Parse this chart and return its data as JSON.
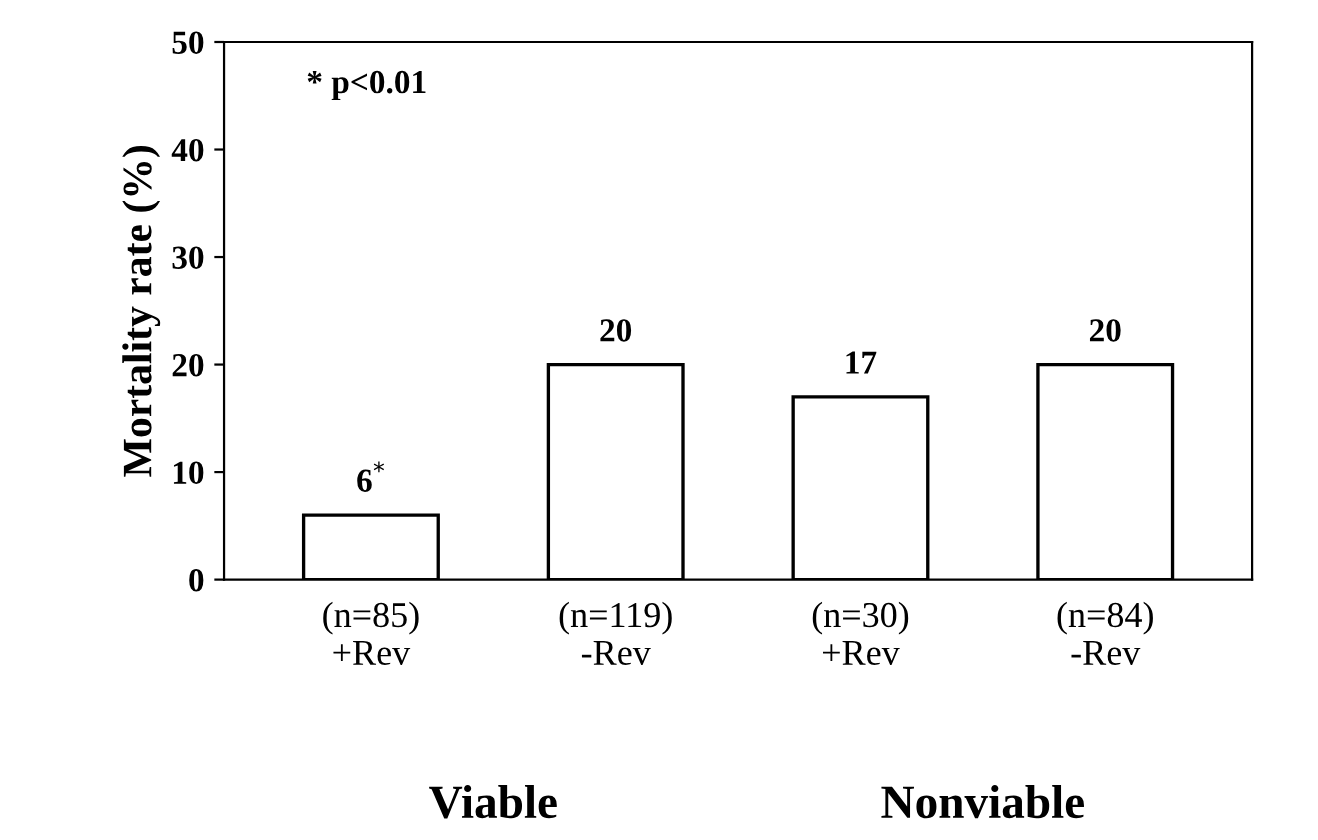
{
  "chart_data": {
    "type": "bar",
    "categories": [
      "(n=85)\n+Rev",
      "(n=119)\n-Rev",
      "(n=30)\n+Rev",
      "(n=84)\n-Rev"
    ],
    "values": [
      6,
      20,
      17,
      20
    ],
    "value_labels": [
      "6$^{*}$",
      "20",
      "17",
      "20"
    ],
    "color": "#ffffff",
    "ylabel": "Mortality rate (%)",
    "ylim": [
      0,
      50
    ],
    "yticks": [
      0,
      10,
      20,
      30,
      40,
      50
    ],
    "grid": false,
    "legend": false,
    "annotations": [
      "* p<0.01",
      "Viable",
      "Nonviable"
    ]
  }
}
